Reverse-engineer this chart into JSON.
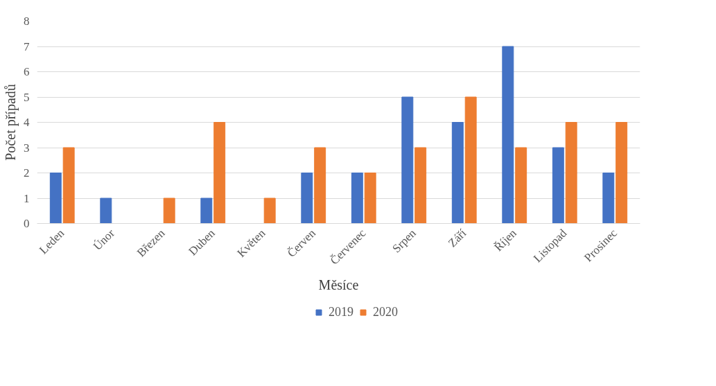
{
  "chart_data": {
    "type": "bar",
    "xlabel": "Měsíce",
    "ylabel": "Počet případů",
    "categories": [
      "Leden",
      "Únor",
      "Březen",
      "Duben",
      "Květen",
      "Červen",
      "Červenec",
      "Srpen",
      "Září",
      "Říjen",
      "Listopad",
      "Prosinec"
    ],
    "series": [
      {
        "name": "2019",
        "color": "#4472c4",
        "values": [
          2,
          1,
          0,
          1,
          0,
          2,
          2,
          5,
          4,
          7,
          3,
          2
        ]
      },
      {
        "name": "2020",
        "color": "#ed7d31",
        "values": [
          3,
          0,
          1,
          4,
          1,
          3,
          2,
          3,
          5,
          3,
          4,
          4
        ]
      }
    ],
    "ylim": [
      0,
      8
    ],
    "yticks": [
      0,
      1,
      2,
      3,
      4,
      5,
      6,
      7,
      8
    ],
    "grid": "y",
    "legend": "bottom"
  }
}
